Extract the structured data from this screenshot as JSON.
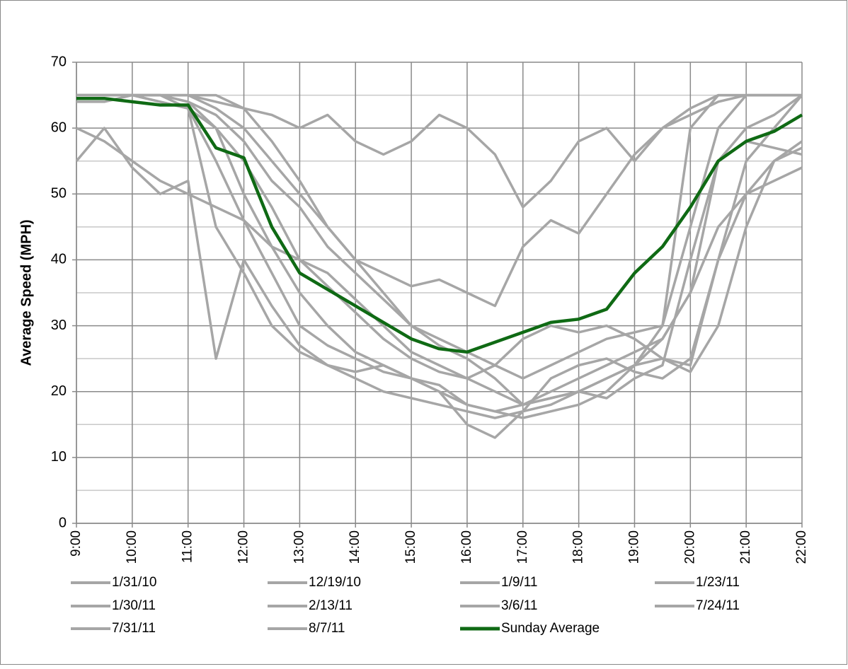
{
  "chart_data": {
    "type": "line",
    "y_label": "Average Speed (MPH)",
    "categories": [
      "9:00",
      null,
      "10:00",
      null,
      "11:00",
      null,
      "12:00",
      null,
      "13:00",
      null,
      "14:00",
      null,
      "15:00",
      null,
      "16:00",
      null,
      "17:00",
      null,
      "18:00",
      null,
      "19:00",
      null,
      "20:00",
      null,
      "21:00",
      null,
      "22:00"
    ],
    "ylim": [
      0,
      70
    ],
    "yticks": [
      0,
      10,
      20,
      30,
      40,
      50,
      60,
      70
    ],
    "yminor": [
      5,
      15,
      25,
      35,
      45,
      55,
      65
    ],
    "grid": true,
    "legend": "bottom",
    "series": [
      {
        "name": "1/31/10",
        "color": "#a6a6a6",
        "values": [
          65,
          65,
          65,
          65,
          64,
          60,
          50,
          42,
          35,
          30,
          26,
          24,
          22,
          21,
          18,
          17,
          16,
          17,
          18,
          20,
          24,
          30,
          45,
          60,
          65,
          65,
          65
        ]
      },
      {
        "name": "12/19/10",
        "color": "#a6a6a6",
        "values": [
          55,
          60,
          54,
          50,
          52,
          25,
          40,
          33,
          27,
          24,
          22,
          20,
          19,
          18,
          17,
          16,
          17,
          18,
          20,
          19,
          22,
          24,
          40,
          55,
          58,
          57,
          56
        ]
      },
      {
        "name": "1/9/11",
        "color": "#a6a6a6",
        "values": [
          65,
          65,
          65,
          65,
          65,
          65,
          63,
          62,
          60,
          62,
          58,
          56,
          58,
          62,
          60,
          56,
          48,
          52,
          58,
          60,
          55,
          60,
          63,
          65,
          65,
          65,
          65
        ]
      },
      {
        "name": "1/23/11",
        "color": "#a6a6a6",
        "values": [
          65,
          65,
          65,
          65,
          64,
          62,
          58,
          52,
          48,
          42,
          38,
          34,
          30,
          27,
          25,
          22,
          18,
          20,
          22,
          24,
          26,
          28,
          35,
          55,
          60,
          62,
          65
        ]
      },
      {
        "name": "1/30/11",
        "color": "#a6a6a6",
        "values": [
          65,
          65,
          65,
          64,
          63,
          55,
          46,
          38,
          30,
          27,
          25,
          23,
          22,
          20,
          18,
          17,
          18,
          19,
          20,
          22,
          24,
          25,
          23,
          30,
          45,
          55,
          58
        ]
      },
      {
        "name": "2/13/11",
        "color": "#a6a6a6",
        "values": [
          65,
          65,
          65,
          65,
          63,
          45,
          38,
          30,
          26,
          24,
          23,
          24,
          22,
          20,
          15,
          13,
          17,
          22,
          24,
          25,
          23,
          22,
          25,
          40,
          50,
          55,
          57
        ]
      },
      {
        "name": "3/6/11",
        "color": "#a6a6a6",
        "values": [
          64,
          64,
          65,
          65,
          65,
          64,
          63,
          58,
          52,
          45,
          40,
          38,
          36,
          37,
          35,
          33,
          42,
          46,
          44,
          50,
          56,
          60,
          62,
          64,
          65,
          65,
          65
        ]
      },
      {
        "name": "7/24/11",
        "color": "#a6a6a6",
        "values": [
          60,
          58,
          55,
          52,
          50,
          48,
          46,
          42,
          40,
          38,
          34,
          30,
          26,
          24,
          22,
          20,
          18,
          19,
          20,
          22,
          24,
          28,
          35,
          45,
          50,
          52,
          54
        ]
      },
      {
        "name": "7/31/11",
        "color": "#a6a6a6",
        "values": [
          65,
          65,
          65,
          65,
          65,
          63,
          60,
          55,
          50,
          45,
          40,
          35,
          30,
          28,
          26,
          24,
          22,
          24,
          26,
          28,
          29,
          30,
          60,
          65,
          65,
          65,
          65
        ]
      },
      {
        "name": "8/7/11",
        "color": "#a6a6a6",
        "values": [
          65,
          65,
          65,
          64,
          63,
          60,
          55,
          48,
          40,
          36,
          32,
          28,
          25,
          23,
          22,
          24,
          28,
          30,
          29,
          30,
          28,
          25,
          24,
          40,
          55,
          60,
          65
        ]
      },
      {
        "name": "Sunday Average",
        "color": "#0f6a14",
        "values": [
          64.5,
          64.5,
          64,
          63.5,
          63.5,
          57,
          55.5,
          45,
          38,
          35.5,
          33,
          30.5,
          28,
          26.5,
          26,
          27.5,
          29,
          30.5,
          31,
          32.5,
          38,
          42,
          48,
          55,
          58,
          59.5,
          62
        ]
      }
    ]
  }
}
